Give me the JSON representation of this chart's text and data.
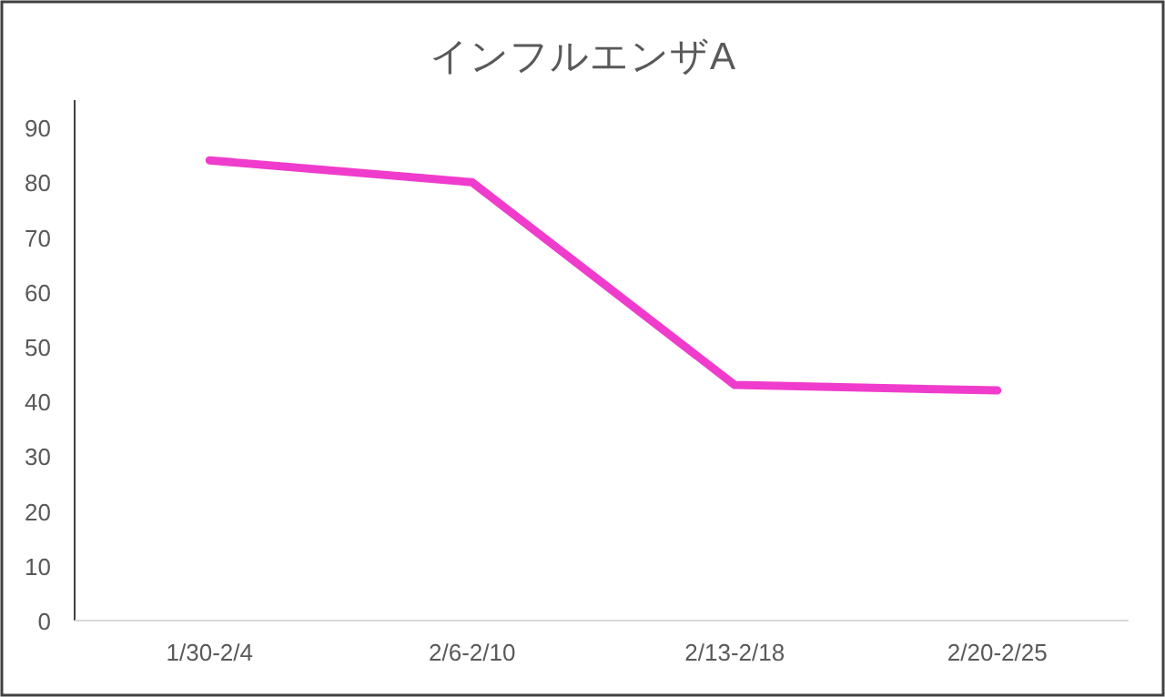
{
  "chart_data": {
    "type": "line",
    "title": "インフルエンザA",
    "categories": [
      "1/30-2/4",
      "2/6-2/10",
      "2/13-2/18",
      "2/20-2/25"
    ],
    "series": [
      {
        "color": "#f03ccc",
        "values": [
          84,
          80,
          43,
          42
        ]
      }
    ],
    "ylim": [
      0,
      95
    ],
    "yticks": [
      0,
      10,
      20,
      30,
      40,
      50,
      60,
      70,
      80,
      90
    ],
    "grid": false,
    "marker": "none",
    "line_style": "solid"
  }
}
